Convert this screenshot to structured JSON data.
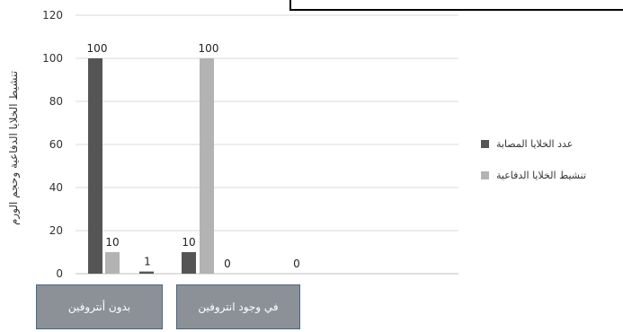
{
  "chart_data": {
    "type": "bar",
    "ylabel": "تنشيط الخلايا الدفاعية وحجم الورم",
    "ylim": [
      0,
      120
    ],
    "yticks": [
      0,
      20,
      40,
      60,
      80,
      100,
      120
    ],
    "grid": true,
    "legend_position": "right",
    "categories": [
      "بدون أنتروفين",
      "في وجود انتروفين"
    ],
    "series": [
      {
        "name": "عدد الخلايا المصابة",
        "color": "#555555",
        "values": [
          100,
          10
        ]
      },
      {
        "name": "تنشيط الخلايا الدفاعية",
        "color": "#b3b3b3",
        "values": [
          10,
          100
        ]
      },
      {
        "color": "#555555",
        "values": [
          1,
          0
        ]
      },
      {
        "color": "#b3b3b3",
        "values": [
          null,
          0
        ]
      }
    ]
  }
}
